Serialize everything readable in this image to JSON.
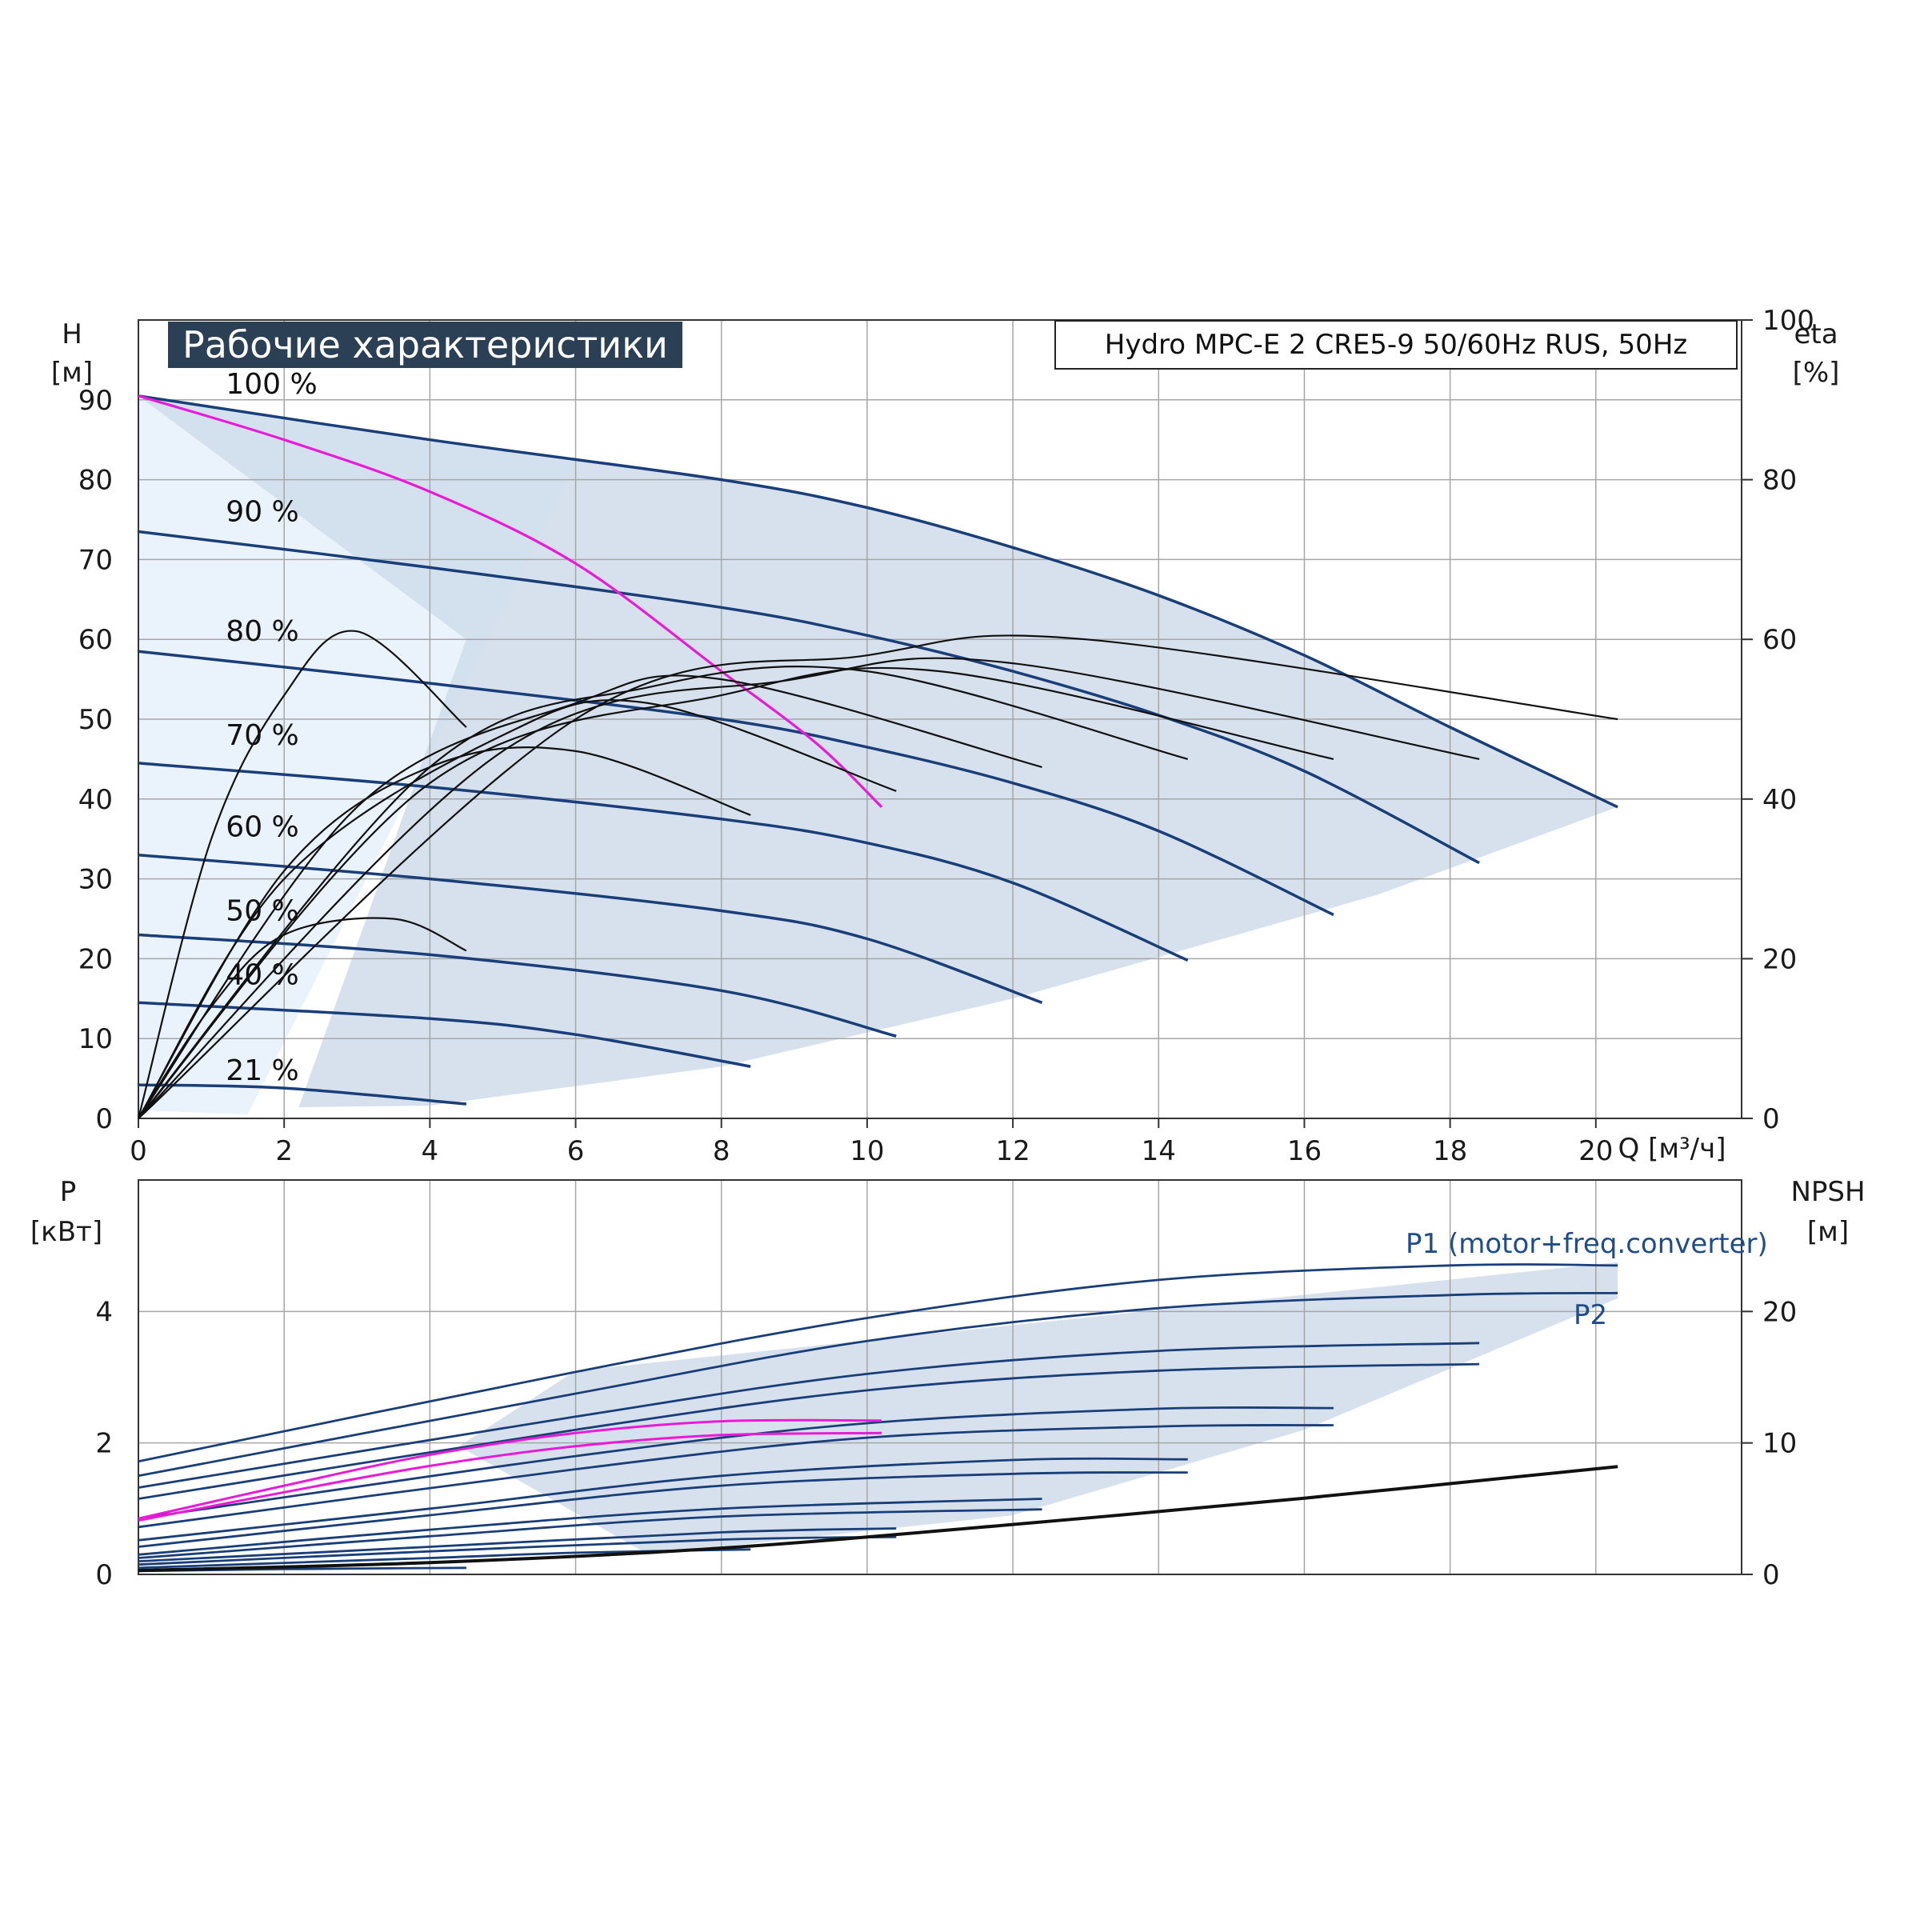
{
  "header": {
    "title": "Рабочие характеристики",
    "model": "Hydro MPC-E 2 CRE5-9 50/60Hz RUS, 50Hz"
  },
  "axes": {
    "top_left_label": "H",
    "top_left_unit": "[м]",
    "top_right_label": "eta",
    "top_right_unit": "[%]",
    "x_label": "Q [м³/ч]",
    "bottom_left_label": "P",
    "bottom_left_unit": "[кВт]",
    "bottom_right_label": "NPSH",
    "bottom_right_unit": "[м]"
  },
  "legend": {
    "p1": "P1 (motor+freq.converter)",
    "p2": "P2"
  },
  "colors": {
    "curve": "#1a3f78",
    "eta": "#111111",
    "system": "#e81cd8",
    "area": "#cfdcea",
    "area_light": "#eaf3fb",
    "grid": "#a6a6a6",
    "npsh": "#111111"
  },
  "chart_data": [
    {
      "type": "line",
      "panel": "head",
      "xlabel": "Q [м³/ч]",
      "ylabel": "H [м]",
      "y2label": "eta [%]",
      "xlim": [
        0,
        22
      ],
      "ylim": [
        0,
        100
      ],
      "y2lim": [
        0,
        100
      ],
      "xticks": [
        0,
        2,
        4,
        6,
        8,
        10,
        12,
        14,
        16,
        18,
        20
      ],
      "yticks": [
        0,
        10,
        20,
        30,
        40,
        50,
        60,
        70,
        80,
        90
      ],
      "y2ticks": [
        0,
        20,
        40,
        60,
        80,
        100
      ],
      "grid": true,
      "series": [
        {
          "name": "100 %",
          "kind": "H",
          "x": [
            0,
            4,
            8,
            10,
            12,
            14,
            16,
            18,
            20.3
          ],
          "y": [
            90.5,
            85,
            80,
            76.5,
            71.5,
            65.5,
            58,
            49,
            39
          ]
        },
        {
          "name": "90 %",
          "kind": "H",
          "x": [
            0,
            4,
            8,
            10,
            12,
            14,
            16,
            18.4
          ],
          "y": [
            73.5,
            69,
            64,
            60.5,
            56,
            50.5,
            43.5,
            32
          ]
        },
        {
          "name": "80 %",
          "kind": "H",
          "x": [
            0,
            4,
            8,
            10,
            12,
            14,
            16.4
          ],
          "y": [
            58.5,
            54.5,
            50,
            46.5,
            42,
            36,
            25.5
          ]
        },
        {
          "name": "70 %",
          "kind": "H",
          "x": [
            0,
            4,
            8,
            10,
            12,
            14.4
          ],
          "y": [
            44.5,
            41.5,
            37.5,
            34.5,
            29.5,
            19.8
          ]
        },
        {
          "name": "60 %",
          "kind": "H",
          "x": [
            0,
            4,
            8,
            10,
            12.4
          ],
          "y": [
            33,
            30,
            26,
            22.5,
            14.5
          ]
        },
        {
          "name": "50 %",
          "kind": "H",
          "x": [
            0,
            4,
            8,
            10.4
          ],
          "y": [
            23,
            20.5,
            16,
            10.3
          ]
        },
        {
          "name": "40 %",
          "kind": "H",
          "x": [
            0,
            4,
            6,
            8.4
          ],
          "y": [
            14.5,
            12.5,
            10.5,
            6.5
          ]
        },
        {
          "name": "21 %",
          "kind": "H",
          "x": [
            0,
            2,
            4.5
          ],
          "y": [
            4.2,
            3.8,
            1.8
          ]
        },
        {
          "name": "",
          "kind": "system",
          "x": [
            0,
            2,
            4,
            6,
            8,
            9.3,
            10.2
          ],
          "y": [
            90.5,
            85,
            78.5,
            69.5,
            56,
            47,
            39
          ]
        },
        {
          "name": "",
          "kind": "eta",
          "x": [
            0,
            1,
            2,
            3,
            4.5
          ],
          "y": [
            0,
            35,
            53,
            61,
            49
          ]
        },
        {
          "name": "",
          "kind": "eta",
          "x": [
            0,
            1,
            2,
            3.5,
            4.5
          ],
          "y": [
            0,
            14,
            23,
            25,
            21
          ]
        },
        {
          "name": "",
          "kind": "eta",
          "x": [
            0,
            2,
            4,
            6,
            8.4
          ],
          "y": [
            0,
            31,
            44,
            46,
            38
          ]
        },
        {
          "name": "",
          "kind": "eta",
          "x": [
            0,
            2,
            5,
            7,
            10.4
          ],
          "y": [
            0,
            30,
            48,
            52,
            41
          ]
        },
        {
          "name": "",
          "kind": "eta",
          "x": [
            0,
            3,
            6,
            8,
            12.4
          ],
          "y": [
            0,
            39,
            52,
            55,
            44
          ]
        },
        {
          "name": "",
          "kind": "eta",
          "x": [
            0,
            4,
            7,
            10,
            14.4
          ],
          "y": [
            0,
            44,
            54,
            56,
            45
          ]
        },
        {
          "name": "",
          "kind": "eta",
          "x": [
            0,
            4,
            8,
            11,
            16.4
          ],
          "y": [
            0,
            42,
            53,
            56,
            45
          ]
        },
        {
          "name": "",
          "kind": "eta",
          "x": [
            0,
            5,
            9,
            12,
            18.4
          ],
          "y": [
            0,
            46,
            55,
            57,
            45
          ]
        },
        {
          "name": "",
          "kind": "eta",
          "x": [
            0,
            6,
            10,
            13,
            20.3
          ],
          "y": [
            0,
            50,
            58,
            60,
            50
          ]
        }
      ]
    },
    {
      "type": "line",
      "panel": "power",
      "xlabel": "Q [м³/ч]",
      "ylabel": "P [кВт]",
      "y2label": "NPSH [м]",
      "xlim": [
        0,
        22
      ],
      "ylim": [
        0,
        6
      ],
      "y2lim": [
        0,
        30
      ],
      "yticks": [
        0,
        2,
        4
      ],
      "y2ticks": [
        0,
        10,
        20
      ],
      "grid": true,
      "series": [
        {
          "name": "P1 (motor+freq.converter)",
          "x": [
            0,
            6,
            10,
            14,
            18,
            20.3
          ],
          "y": [
            1.72,
            3.08,
            3.9,
            4.48,
            4.7,
            4.7
          ]
        },
        {
          "name": "P2",
          "x": [
            0,
            6,
            10,
            14,
            18,
            20.3
          ],
          "y": [
            1.5,
            2.75,
            3.55,
            4.05,
            4.25,
            4.28
          ]
        },
        {
          "name": "",
          "x": [
            0,
            6,
            10,
            14,
            18.4
          ],
          "y": [
            1.32,
            2.4,
            3.05,
            3.4,
            3.52
          ]
        },
        {
          "name": "",
          "x": [
            0,
            6,
            10,
            14,
            18.4
          ],
          "y": [
            1.15,
            2.2,
            2.8,
            3.1,
            3.2
          ]
        },
        {
          "name": "",
          "x": [
            0,
            6,
            10,
            14,
            16.4
          ],
          "y": [
            0.85,
            1.8,
            2.3,
            2.52,
            2.53
          ]
        },
        {
          "name": "",
          "x": [
            0,
            6,
            10,
            14,
            16.4
          ],
          "y": [
            0.72,
            1.6,
            2.08,
            2.25,
            2.27
          ]
        },
        {
          "name": "",
          "x": [
            0,
            4,
            8,
            12,
            14.4
          ],
          "y": [
            0.52,
            1.0,
            1.5,
            1.74,
            1.75
          ]
        },
        {
          "name": "",
          "x": [
            0,
            4,
            8,
            12,
            14.4
          ],
          "y": [
            0.42,
            0.9,
            1.35,
            1.53,
            1.55
          ]
        },
        {
          "name": "",
          "x": [
            0,
            4,
            8,
            12.4
          ],
          "y": [
            0.3,
            0.68,
            1.0,
            1.15
          ]
        },
        {
          "name": "",
          "x": [
            0,
            4,
            8,
            12.4
          ],
          "y": [
            0.25,
            0.58,
            0.88,
            0.99
          ]
        },
        {
          "name": "",
          "x": [
            0,
            4,
            8,
            10.4
          ],
          "y": [
            0.2,
            0.42,
            0.64,
            0.7
          ]
        },
        {
          "name": "",
          "x": [
            0,
            4,
            8,
            10.4
          ],
          "y": [
            0.15,
            0.35,
            0.53,
            0.57
          ]
        },
        {
          "name": "",
          "x": [
            0,
            4,
            6,
            8.4
          ],
          "y": [
            0.1,
            0.25,
            0.33,
            0.38
          ]
        },
        {
          "name": "",
          "x": [
            0,
            2,
            4.5
          ],
          "y": [
            0.05,
            0.08,
            0.1
          ]
        },
        {
          "name": "",
          "kind": "system",
          "x": [
            0,
            2,
            4,
            6,
            8,
            10.2
          ],
          "y": [
            0.85,
            1.35,
            1.82,
            2.15,
            2.33,
            2.34
          ]
        },
        {
          "name": "",
          "kind": "system",
          "x": [
            0,
            2,
            4,
            6,
            8,
            10.2
          ],
          "y": [
            0.82,
            1.25,
            1.65,
            1.95,
            2.12,
            2.15
          ]
        },
        {
          "name": "",
          "kind": "npsh",
          "axis": "y2",
          "x": [
            0,
            4,
            8,
            12,
            16,
            20.3
          ],
          "y": [
            0.3,
            0.9,
            2.0,
            3.8,
            5.8,
            8.2
          ]
        }
      ]
    }
  ]
}
